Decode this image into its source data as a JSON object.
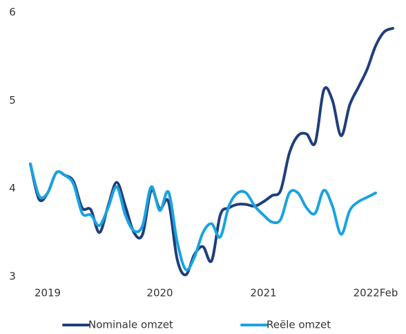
{
  "chart_data": {
    "type": "line",
    "categories": [
      null,
      null,
      "2019",
      null,
      null,
      null,
      null,
      null,
      null,
      null,
      null,
      null,
      null,
      null,
      null,
      "2020",
      null,
      null,
      null,
      null,
      null,
      null,
      null,
      null,
      null,
      null,
      null,
      "2021",
      null,
      null,
      null,
      null,
      null,
      null,
      null,
      null,
      null,
      null,
      null,
      null,
      "2022Feb",
      null,
      null
    ],
    "series": [
      {
        "name": "Nominale omzet",
        "color": "#1f3f7a",
        "values": [
          4.28,
          3.88,
          3.95,
          4.18,
          4.15,
          4.08,
          3.78,
          3.76,
          3.5,
          3.8,
          4.07,
          3.8,
          3.5,
          3.48,
          3.98,
          3.77,
          3.85,
          3.2,
          3.02,
          3.25,
          3.34,
          3.18,
          3.7,
          3.78,
          3.82,
          3.82,
          3.8,
          3.85,
          3.92,
          3.98,
          4.4,
          4.6,
          4.62,
          4.52,
          5.12,
          5.0,
          4.6,
          4.95,
          5.15,
          5.35,
          5.62,
          5.78,
          5.82
        ]
      },
      {
        "name": "Reële omzet",
        "color": "#1aa3e0",
        "values": [
          4.28,
          3.92,
          3.95,
          4.18,
          4.15,
          4.05,
          3.72,
          3.7,
          3.58,
          3.78,
          4.02,
          3.7,
          3.52,
          3.58,
          4.02,
          3.75,
          3.96,
          3.4,
          3.08,
          3.22,
          3.5,
          3.6,
          3.45,
          3.8,
          3.95,
          3.95,
          3.8,
          3.7,
          3.62,
          3.65,
          3.95,
          3.95,
          3.78,
          3.72,
          3.98,
          3.8,
          3.48,
          3.75,
          3.85,
          3.9,
          3.95,
          null,
          null
        ]
      }
    ],
    "ylim": [
      3,
      6
    ],
    "yticks": [
      3,
      4,
      5,
      6
    ],
    "grid": false,
    "legend": "bottom"
  }
}
